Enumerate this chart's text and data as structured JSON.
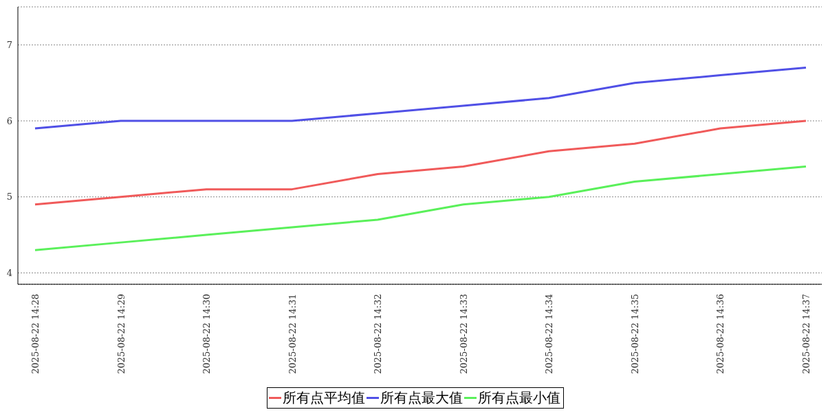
{
  "chart_data": {
    "type": "line",
    "categories": [
      "2025-08-22 14:28",
      "2025-08-22 14:29",
      "2025-08-22 14:30",
      "2025-08-22 14:31",
      "2025-08-22 14:32",
      "2025-08-22 14:33",
      "2025-08-22 14:34",
      "2025-08-22 14:35",
      "2025-08-22 14:36",
      "2025-08-22 14:37"
    ],
    "series": [
      {
        "name": "所有点平均值",
        "color": "#f05a5a",
        "values": [
          4.9,
          5.0,
          5.1,
          5.1,
          5.3,
          5.4,
          5.6,
          5.7,
          5.9,
          6.0
        ]
      },
      {
        "name": "所有点最大值",
        "color": "#5050e6",
        "values": [
          5.9,
          6.0,
          6.0,
          6.0,
          6.1,
          6.2,
          6.3,
          6.5,
          6.6,
          6.7
        ]
      },
      {
        "name": "所有点最小值",
        "color": "#5af05a",
        "values": [
          4.3,
          4.4,
          4.5,
          4.6,
          4.7,
          4.9,
          5.0,
          5.2,
          5.3,
          5.4
        ]
      }
    ],
    "ylim": [
      3.85,
      7.5
    ],
    "yticks": [
      4,
      5,
      6,
      7
    ],
    "grid": "y",
    "legend": "bottom",
    "marker": "none"
  }
}
